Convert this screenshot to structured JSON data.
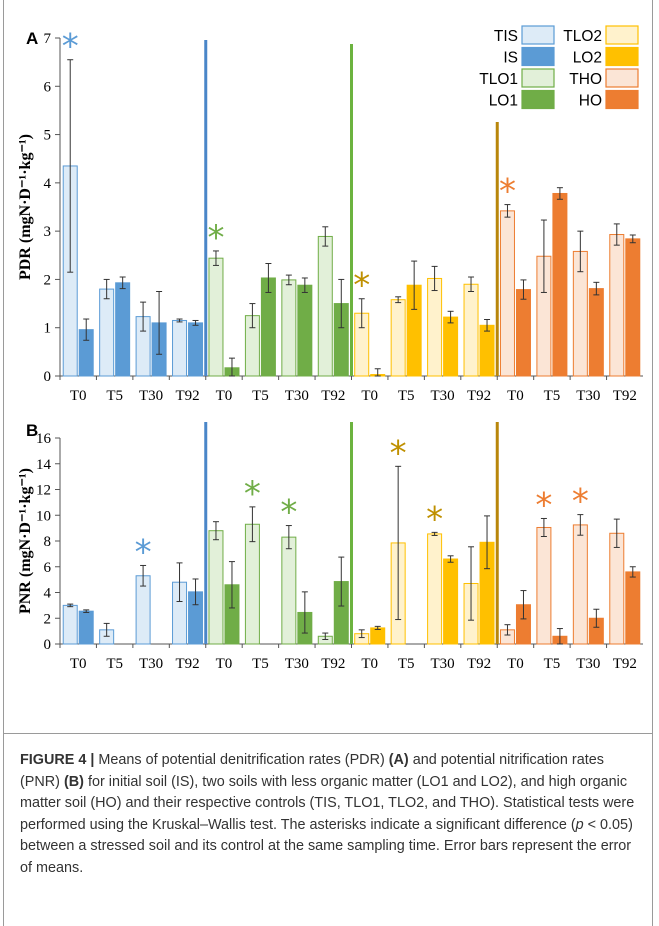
{
  "colors": {
    "IS": "#5b9bd5",
    "TIS": "#ddebf7",
    "LO1": "#70ad47",
    "TLO1": "#e2f0d9",
    "LO2": "#ffc000",
    "TLO2": "#fff2cc",
    "HO": "#ed7d31",
    "THO": "#fbe5d6",
    "star_IS": "#5b9bd5",
    "star_LO1": "#70ad47",
    "star_LO2": "#bf9000",
    "star_HO": "#ed7d31",
    "div_IS": "#4a86c8",
    "div_LO1": "#6cb33f",
    "div_LO2": "#b8860b",
    "error": "#333333"
  },
  "chart_data": [
    {
      "type": "bar",
      "panel_label": "A",
      "ylabel": "PDR (mgN·D⁻¹·kg⁻¹)",
      "ylim": [
        0,
        7
      ],
      "yticks": [
        "0",
        "1",
        "2",
        "3",
        "4",
        "5",
        "6",
        "7"
      ],
      "grid": false,
      "legend_placement": "top-right",
      "legend": [
        {
          "label": "TIS",
          "soil": "TIS"
        },
        {
          "label": "IS",
          "soil": "IS"
        },
        {
          "label": "TLO1",
          "soil": "TLO1"
        },
        {
          "label": "LO1",
          "soil": "LO1"
        },
        {
          "label": "TLO2",
          "soil": "TLO2"
        },
        {
          "label": "LO2",
          "soil": "LO2"
        },
        {
          "label": "THO",
          "soil": "THO"
        },
        {
          "label": "HO",
          "soil": "HO"
        }
      ],
      "groups": [
        {
          "control": "TIS",
          "stressed": "IS",
          "times": [
            "T0",
            "T5",
            "T30",
            "T92"
          ],
          "control_values": [
            4.35,
            1.8,
            1.23,
            1.15
          ],
          "control_errors": [
            2.2,
            0.2,
            0.3,
            0.03
          ],
          "stressed_values": [
            0.96,
            1.93,
            1.1,
            1.1
          ],
          "stressed_errors": [
            0.22,
            0.12,
            0.65,
            0.05
          ],
          "asterisks": [
            "T0"
          ]
        },
        {
          "control": "TLO1",
          "stressed": "LO1",
          "times": [
            "T0",
            "T5",
            "T30",
            "T92"
          ],
          "control_values": [
            2.44,
            1.25,
            1.99,
            2.89
          ],
          "control_errors": [
            0.15,
            0.25,
            0.1,
            0.2
          ],
          "stressed_values": [
            0.17,
            2.03,
            1.88,
            1.5
          ],
          "stressed_errors": [
            0.2,
            0.3,
            0.15,
            0.5
          ],
          "asterisks": [
            "T0"
          ]
        },
        {
          "control": "TLO2",
          "stressed": "LO2",
          "times": [
            "T0",
            "T5",
            "T30",
            "T92"
          ],
          "control_values": [
            1.3,
            1.58,
            2.02,
            1.9
          ],
          "control_errors": [
            0.3,
            0.06,
            0.25,
            0.15
          ],
          "stressed_values": [
            0.03,
            1.88,
            1.22,
            1.05
          ],
          "stressed_errors": [
            0.12,
            0.5,
            0.12,
            0.12
          ],
          "asterisks": [
            "T0"
          ]
        },
        {
          "control": "THO",
          "stressed": "HO",
          "times": [
            "T0",
            "T5",
            "T30",
            "T92"
          ],
          "control_values": [
            3.42,
            2.48,
            2.58,
            2.93
          ],
          "control_errors": [
            0.13,
            0.75,
            0.42,
            0.22
          ],
          "stressed_values": [
            1.79,
            3.78,
            1.81,
            2.84
          ],
          "stressed_errors": [
            0.2,
            0.12,
            0.13,
            0.08
          ],
          "asterisks": [
            "T0"
          ]
        }
      ]
    },
    {
      "type": "bar",
      "panel_label": "B",
      "ylabel": "PNR (mgN·D⁻¹·kg⁻¹)",
      "ylim": [
        0,
        16
      ],
      "yticks": [
        "0",
        "2",
        "4",
        "6",
        "8",
        "10",
        "12",
        "14",
        "16"
      ],
      "grid": false,
      "groups": [
        {
          "control": "TIS",
          "stressed": "IS",
          "times": [
            "T0",
            "T5",
            "T30",
            "T92"
          ],
          "control_values": [
            3.0,
            1.1,
            5.3,
            4.8
          ],
          "control_errors": [
            0.1,
            0.5,
            0.8,
            1.5
          ],
          "stressed_values": [
            2.55,
            0.0,
            0.0,
            4.05
          ],
          "stressed_errors": [
            0.1,
            0,
            0,
            1.0
          ],
          "asterisks": [
            "T30"
          ]
        },
        {
          "control": "TLO1",
          "stressed": "LO1",
          "times": [
            "T0",
            "T5",
            "T30",
            "T92"
          ],
          "control_values": [
            8.8,
            9.3,
            8.3,
            0.6
          ],
          "control_errors": [
            0.7,
            1.35,
            0.9,
            0.25
          ],
          "stressed_values": [
            4.6,
            0.0,
            2.45,
            4.85
          ],
          "stressed_errors": [
            1.8,
            0,
            1.6,
            1.9
          ],
          "asterisks": [
            "T5",
            "T30"
          ]
        },
        {
          "control": "TLO2",
          "stressed": "LO2",
          "times": [
            "T0",
            "T5",
            "T30",
            "T92"
          ],
          "control_values": [
            0.8,
            7.85,
            8.55,
            4.7
          ],
          "control_errors": [
            0.3,
            5.95,
            0.12,
            2.85
          ],
          "stressed_values": [
            1.25,
            0.0,
            6.6,
            7.9
          ],
          "stressed_errors": [
            0.12,
            0,
            0.25,
            2.05
          ],
          "asterisks": [
            "T5",
            "T30"
          ]
        },
        {
          "control": "THO",
          "stressed": "HO",
          "times": [
            "T0",
            "T5",
            "T30",
            "T92"
          ],
          "control_values": [
            1.1,
            9.05,
            9.25,
            8.6
          ],
          "control_errors": [
            0.4,
            0.7,
            0.8,
            1.1
          ],
          "stressed_values": [
            3.05,
            0.6,
            2.0,
            5.6
          ],
          "stressed_errors": [
            1.1,
            0.6,
            0.7,
            0.4
          ],
          "asterisks": [
            "T5",
            "T30"
          ]
        }
      ]
    }
  ],
  "caption": {
    "label": "FIGURE 4 |",
    "segments": [
      {
        "text": " Means of potential denitrification rates (PDR) ",
        "bold": false
      },
      {
        "text": "(A)",
        "bold": true
      },
      {
        "text": " and potential nitrification rates (PNR) ",
        "bold": false
      },
      {
        "text": "(B)",
        "bold": true
      },
      {
        "text": " for initial soil (IS), two soils with less organic matter (LO1 and LO2), and high organic matter soil (HO) and their respective controls (TIS, TLO1, TLO2, and THO). Statistical tests were performed using the Kruskal–Wallis test. The asterisks indicate a significant difference (",
        "bold": false
      },
      {
        "text": "p",
        "bold": false,
        "italic": true
      },
      {
        "text": " < 0.05) between a stressed soil and its control at the same sampling time. Error bars represent the error of means.",
        "bold": false
      }
    ]
  }
}
